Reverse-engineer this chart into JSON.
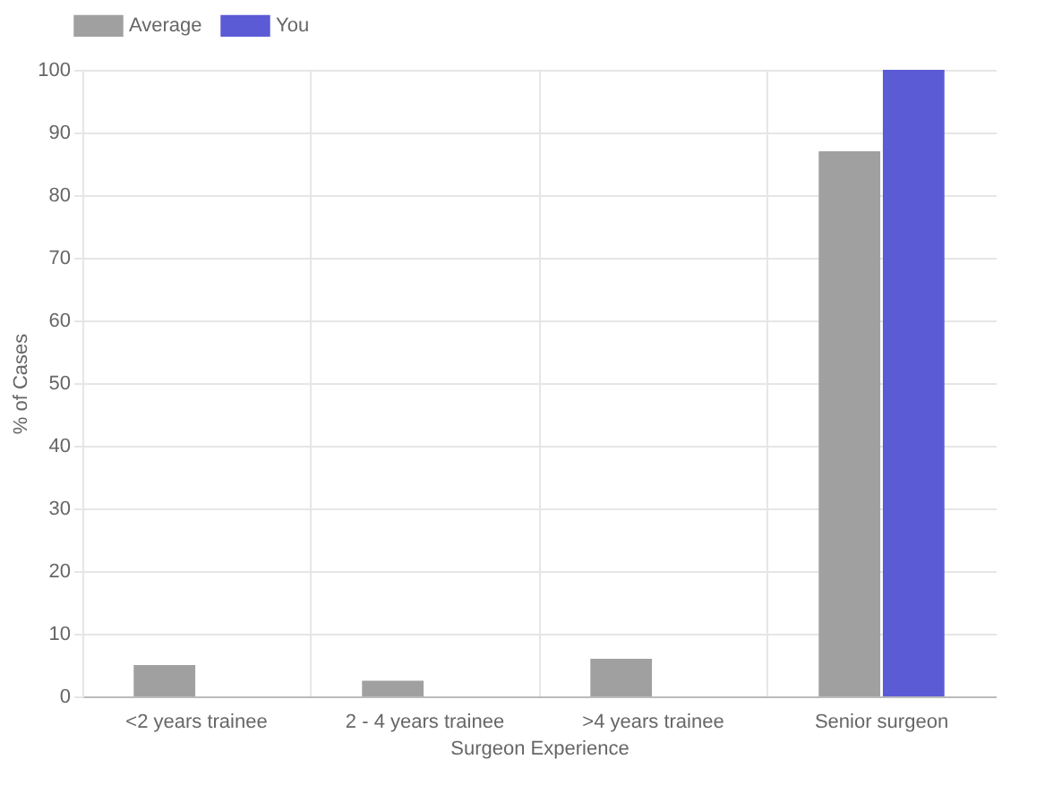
{
  "chart_data": {
    "type": "bar",
    "xlabel": "Surgeon Experience",
    "ylabel": "% of Cases",
    "categories": [
      "<2 years trainee",
      "2 - 4 years trainee",
      ">4 years trainee",
      "Senior surgeon"
    ],
    "series": [
      {
        "name": "Average",
        "color": "#a0a0a0",
        "values": [
          5,
          2.5,
          6,
          87
        ]
      },
      {
        "name": "You",
        "color": "#5b5bd6",
        "values": [
          0,
          0,
          0,
          100
        ]
      }
    ],
    "ylim": [
      0,
      100
    ],
    "yticks": [
      0,
      10,
      20,
      30,
      40,
      50,
      60,
      70,
      80,
      90,
      100
    ],
    "grid": true,
    "legend": "top"
  }
}
